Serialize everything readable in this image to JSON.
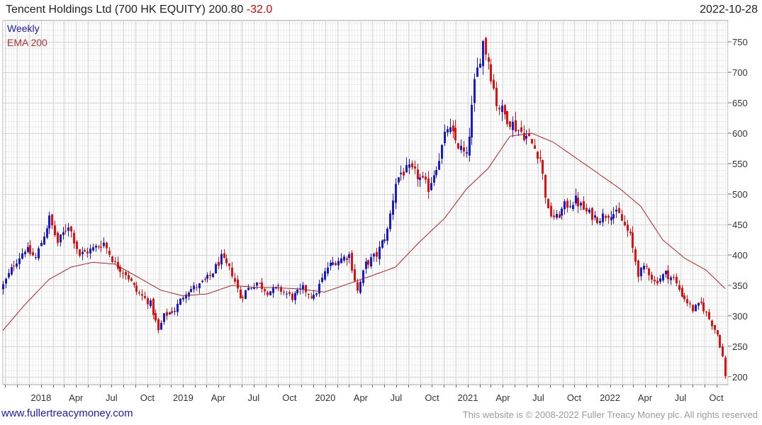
{
  "header": {
    "title": "Tencent Holdings Ltd (700 HK EQUITY) 200.80",
    "change": "-32.0",
    "date": "2022-10-28"
  },
  "legend": {
    "series1": "Weekly",
    "series2": "EMA 200"
  },
  "footer": {
    "left": "www.fullertreacymoney.com",
    "right": "This website is © 2008-2022 Fuller Treacy Money plc. All rights reserved"
  },
  "colors": {
    "up": "#1a1acd",
    "down": "#e01010",
    "ema": "#b22222",
    "grid": "#dcdcdc"
  },
  "chart_data": {
    "type": "candlestick",
    "frequency": "weekly",
    "ylim": [
      187,
      785
    ],
    "yticks": [
      200,
      250,
      300,
      350,
      400,
      450,
      500,
      550,
      600,
      650,
      700,
      750
    ],
    "xlim": [
      "2017-09-25",
      "2022-10-31"
    ],
    "xticks": [
      {
        "date": "2018-01-01",
        "label": "2018"
      },
      {
        "date": "2018-04-01",
        "label": "Apr"
      },
      {
        "date": "2018-07-01",
        "label": "Jul"
      },
      {
        "date": "2018-10-01",
        "label": "Oct"
      },
      {
        "date": "2019-01-01",
        "label": "2019"
      },
      {
        "date": "2019-04-01",
        "label": "Apr"
      },
      {
        "date": "2019-07-01",
        "label": "Jul"
      },
      {
        "date": "2019-10-01",
        "label": "Oct"
      },
      {
        "date": "2020-01-01",
        "label": "2020"
      },
      {
        "date": "2020-04-01",
        "label": "Apr"
      },
      {
        "date": "2020-07-01",
        "label": "Jul"
      },
      {
        "date": "2020-10-01",
        "label": "Oct"
      },
      {
        "date": "2021-01-01",
        "label": "2021"
      },
      {
        "date": "2021-04-01",
        "label": "Apr"
      },
      {
        "date": "2021-07-01",
        "label": "Jul"
      },
      {
        "date": "2021-10-01",
        "label": "Oct"
      },
      {
        "date": "2022-01-01",
        "label": "2022"
      },
      {
        "date": "2022-04-01",
        "label": "Apr"
      },
      {
        "date": "2022-07-01",
        "label": "Jul"
      },
      {
        "date": "2022-10-01",
        "label": "Oct"
      }
    ],
    "price_anchors": [
      [
        "2017-09-25",
        350
      ],
      [
        "2017-10-23",
        385
      ],
      [
        "2017-11-20",
        410
      ],
      [
        "2017-12-18",
        395
      ],
      [
        "2018-01-22",
        460
      ],
      [
        "2018-02-12",
        420
      ],
      [
        "2018-03-12",
        450
      ],
      [
        "2018-04-09",
        400
      ],
      [
        "2018-05-14",
        410
      ],
      [
        "2018-06-11",
        420
      ],
      [
        "2018-07-09",
        385
      ],
      [
        "2018-08-06",
        370
      ],
      [
        "2018-09-03",
        340
      ],
      [
        "2018-10-08",
        320
      ],
      [
        "2018-10-29",
        275
      ],
      [
        "2018-11-12",
        300
      ],
      [
        "2018-12-10",
        310
      ],
      [
        "2019-01-07",
        340
      ],
      [
        "2019-02-11",
        350
      ],
      [
        "2019-03-11",
        365
      ],
      [
        "2019-04-08",
        395
      ],
      [
        "2019-05-06",
        370
      ],
      [
        "2019-05-27",
        330
      ],
      [
        "2019-06-17",
        345
      ],
      [
        "2019-07-08",
        355
      ],
      [
        "2019-08-05",
        340
      ],
      [
        "2019-09-02",
        345
      ],
      [
        "2019-10-07",
        330
      ],
      [
        "2019-11-04",
        345
      ],
      [
        "2019-12-02",
        330
      ],
      [
        "2020-01-06",
        380
      ],
      [
        "2020-01-27",
        390
      ],
      [
        "2020-03-02",
        400
      ],
      [
        "2020-03-23",
        340
      ],
      [
        "2020-04-13",
        385
      ],
      [
        "2020-05-11",
        400
      ],
      [
        "2020-06-08",
        440
      ],
      [
        "2020-06-29",
        520
      ],
      [
        "2020-07-13",
        535
      ],
      [
        "2020-08-03",
        540
      ],
      [
        "2020-08-24",
        530
      ],
      [
        "2020-09-21",
        510
      ],
      [
        "2020-10-19",
        560
      ],
      [
        "2020-11-09",
        610
      ],
      [
        "2020-12-07",
        580
      ],
      [
        "2020-12-28",
        560
      ],
      [
        "2021-01-18",
        680
      ],
      [
        "2021-02-08",
        750
      ],
      [
        "2021-02-22",
        720
      ],
      [
        "2021-03-15",
        650
      ],
      [
        "2021-04-05",
        630
      ],
      [
        "2021-05-03",
        610
      ],
      [
        "2021-06-07",
        590
      ],
      [
        "2021-07-05",
        560
      ],
      [
        "2021-07-26",
        470
      ],
      [
        "2021-08-16",
        460
      ],
      [
        "2021-09-06",
        480
      ],
      [
        "2021-10-04",
        490
      ],
      [
        "2021-11-01",
        470
      ],
      [
        "2021-11-29",
        460
      ],
      [
        "2022-01-03",
        470
      ],
      [
        "2022-01-24",
        465
      ],
      [
        "2022-02-21",
        430
      ],
      [
        "2022-03-14",
        370
      ],
      [
        "2022-04-04",
        380
      ],
      [
        "2022-04-25",
        355
      ],
      [
        "2022-05-23",
        370
      ],
      [
        "2022-06-13",
        360
      ],
      [
        "2022-07-04",
        335
      ],
      [
        "2022-08-01",
        310
      ],
      [
        "2022-08-22",
        320
      ],
      [
        "2022-09-12",
        295
      ],
      [
        "2022-10-03",
        270
      ],
      [
        "2022-10-17",
        232.8
      ],
      [
        "2022-10-28",
        200.8
      ]
    ],
    "ema_anchors": [
      [
        "2017-09-25",
        276
      ],
      [
        "2017-11-20",
        318
      ],
      [
        "2018-01-22",
        360
      ],
      [
        "2018-03-19",
        380
      ],
      [
        "2018-05-14",
        388
      ],
      [
        "2018-07-09",
        385
      ],
      [
        "2018-09-03",
        365
      ],
      [
        "2018-11-05",
        342
      ],
      [
        "2018-12-31",
        333
      ],
      [
        "2019-03-04",
        336
      ],
      [
        "2019-05-06",
        350
      ],
      [
        "2019-07-01",
        347
      ],
      [
        "2019-09-02",
        346
      ],
      [
        "2019-10-28",
        344
      ],
      [
        "2019-12-30",
        339
      ],
      [
        "2020-03-02",
        353
      ],
      [
        "2020-05-04",
        367
      ],
      [
        "2020-06-29",
        380
      ],
      [
        "2020-08-31",
        422
      ],
      [
        "2020-11-02",
        460
      ],
      [
        "2020-12-28",
        508
      ],
      [
        "2021-02-22",
        542
      ],
      [
        "2021-04-19",
        595
      ],
      [
        "2021-06-14",
        600
      ],
      [
        "2021-08-09",
        585
      ],
      [
        "2021-10-04",
        560
      ],
      [
        "2021-11-29",
        535
      ],
      [
        "2022-01-24",
        510
      ],
      [
        "2022-03-21",
        480
      ],
      [
        "2022-05-16",
        425
      ],
      [
        "2022-07-11",
        395
      ],
      [
        "2022-09-05",
        375
      ],
      [
        "2022-10-28",
        342
      ]
    ]
  }
}
